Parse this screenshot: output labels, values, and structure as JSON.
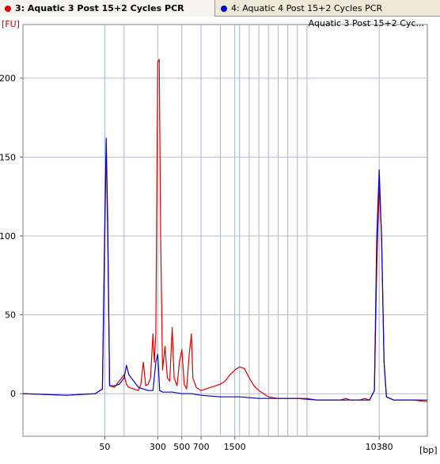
{
  "tabs": [
    {
      "label": "3: Aquatic 3 Post 15+2 Cycles PCR",
      "color": "#e00000",
      "active": true
    },
    {
      "label": "4: Aquatic 4 Post 15+2 Cycles PCR",
      "color": "#0000dd",
      "active": false
    }
  ],
  "chart_data": {
    "type": "line",
    "title": "Aquatic 3 Post 15+2 Cyc...",
    "ylabel": "[FU]",
    "xlabel": "[bp]",
    "ylim": [
      -27,
      234
    ],
    "xlim": [
      33,
      117
    ],
    "grid": true,
    "yticks": [
      0,
      50,
      100,
      150,
      200
    ],
    "xticks": [
      {
        "label": "50",
        "t": 50
      },
      {
        "label": "300",
        "t": 61
      },
      {
        "label": "500",
        "t": 66
      },
      {
        "label": "700",
        "t": 70
      },
      {
        "label": "1500",
        "t": 77
      },
      {
        "label": "10380",
        "t": 107
      }
    ],
    "vgrid_t": [
      50,
      54,
      61,
      66,
      70,
      74,
      77,
      78,
      80,
      82,
      84,
      86,
      88,
      90,
      92,
      107
    ],
    "series": [
      {
        "name": "Aquatic 3 Post 15+2 Cycles PCR",
        "color": "#dd0000",
        "points": [
          [
            33,
            0
          ],
          [
            42,
            -1
          ],
          [
            48,
            0
          ],
          [
            49.5,
            3
          ],
          [
            50,
            100
          ],
          [
            50.3,
            158
          ],
          [
            50.6,
            100
          ],
          [
            51,
            5
          ],
          [
            52,
            4
          ],
          [
            53,
            8
          ],
          [
            54,
            12
          ],
          [
            54.5,
            6
          ],
          [
            55,
            4
          ],
          [
            56,
            3
          ],
          [
            57,
            2
          ],
          [
            57.5,
            6
          ],
          [
            58,
            20
          ],
          [
            58.5,
            5
          ],
          [
            59,
            6
          ],
          [
            59.5,
            10
          ],
          [
            60,
            38
          ],
          [
            60.3,
            20
          ],
          [
            60.6,
            38
          ],
          [
            61,
            210
          ],
          [
            61.3,
            212
          ],
          [
            61.6,
            100
          ],
          [
            62,
            15
          ],
          [
            62.5,
            30
          ],
          [
            63,
            10
          ],
          [
            63.5,
            8
          ],
          [
            64,
            42
          ],
          [
            64.4,
            10
          ],
          [
            65,
            5
          ],
          [
            65.5,
            20
          ],
          [
            66,
            28
          ],
          [
            66.5,
            6
          ],
          [
            67,
            3
          ],
          [
            67.5,
            24
          ],
          [
            68,
            38
          ],
          [
            68.3,
            10
          ],
          [
            69,
            4
          ],
          [
            70,
            2
          ],
          [
            72,
            4
          ],
          [
            74,
            6
          ],
          [
            75,
            8
          ],
          [
            76,
            12
          ],
          [
            77,
            15
          ],
          [
            78,
            17
          ],
          [
            79,
            16
          ],
          [
            80,
            10
          ],
          [
            81,
            5
          ],
          [
            82,
            2
          ],
          [
            84,
            -2
          ],
          [
            86,
            -3
          ],
          [
            88,
            -3
          ],
          [
            90,
            -3
          ],
          [
            92,
            -3
          ],
          [
            94,
            -4
          ],
          [
            96,
            -4
          ],
          [
            99,
            -4
          ],
          [
            100,
            -3
          ],
          [
            101,
            -4
          ],
          [
            102,
            -4
          ],
          [
            103,
            -4
          ],
          [
            104,
            -3
          ],
          [
            105,
            -4
          ],
          [
            106,
            2
          ],
          [
            106.5,
            80
          ],
          [
            107,
            132
          ],
          [
            107.5,
            100
          ],
          [
            108,
            20
          ],
          [
            108.5,
            -2
          ],
          [
            110,
            -4
          ],
          [
            114,
            -4
          ],
          [
            117,
            -5
          ]
        ]
      },
      {
        "name": "Aquatic 4 Post 15+2 Cycles PCR",
        "color": "#0000cc",
        "points": [
          [
            33,
            0
          ],
          [
            42,
            -1
          ],
          [
            48,
            0
          ],
          [
            49.5,
            3
          ],
          [
            50,
            108
          ],
          [
            50.3,
            162
          ],
          [
            50.6,
            110
          ],
          [
            51,
            5
          ],
          [
            52,
            5
          ],
          [
            53,
            6
          ],
          [
            54,
            10
          ],
          [
            54.5,
            18
          ],
          [
            55,
            12
          ],
          [
            56,
            8
          ],
          [
            57,
            4
          ],
          [
            58,
            3
          ],
          [
            59,
            2
          ],
          [
            60,
            2
          ],
          [
            60.6,
            20
          ],
          [
            61,
            25
          ],
          [
            61.4,
            2
          ],
          [
            62,
            1
          ],
          [
            64,
            1
          ],
          [
            66,
            0
          ],
          [
            68,
            0
          ],
          [
            70,
            -1
          ],
          [
            74,
            -2
          ],
          [
            78,
            -2
          ],
          [
            82,
            -3
          ],
          [
            86,
            -3
          ],
          [
            90,
            -3
          ],
          [
            94,
            -4
          ],
          [
            99,
            -4
          ],
          [
            103,
            -4
          ],
          [
            105,
            -4
          ],
          [
            106,
            2
          ],
          [
            106.5,
            100
          ],
          [
            107,
            142
          ],
          [
            107.5,
            98
          ],
          [
            108,
            20
          ],
          [
            108.5,
            -2
          ],
          [
            110,
            -4
          ],
          [
            114,
            -4
          ],
          [
            117,
            -4
          ]
        ]
      }
    ]
  }
}
